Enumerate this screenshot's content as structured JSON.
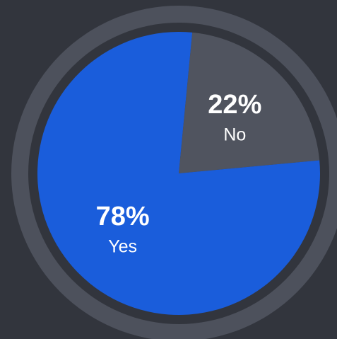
{
  "chart_data": {
    "type": "pie",
    "categories": [
      "No",
      "Yes"
    ],
    "values": [
      22,
      78
    ],
    "value_labels": [
      "22%",
      "78%"
    ],
    "colors": [
      "#50545f",
      "#1a5ddb"
    ]
  }
}
